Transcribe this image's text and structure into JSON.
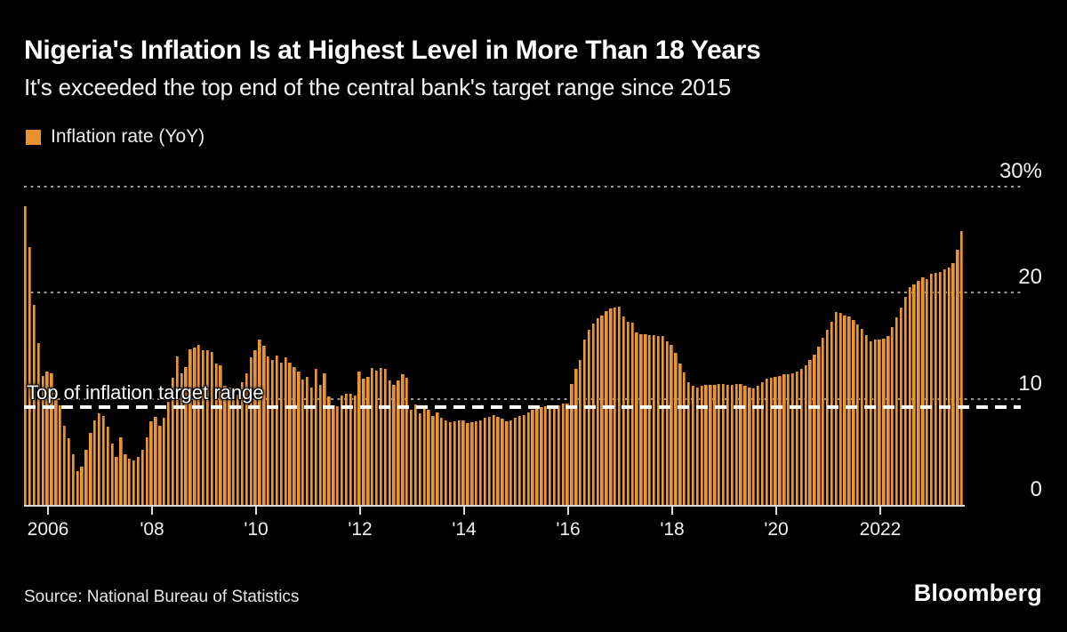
{
  "header": {
    "title": "Nigeria's Inflation Is at Highest Level in More Than 18 Years",
    "subtitle": "It's exceeded the top end of the central bank's target range since 2015"
  },
  "legend": {
    "label": "Inflation rate (YoY)",
    "swatch_color": "#E8912D"
  },
  "annotation": {
    "target_label": "Top of inflation target range",
    "target_value": 9
  },
  "footer": {
    "source": "Source: National Bureau of Statistics",
    "brand": "Bloomberg"
  },
  "colors": {
    "background": "#000000",
    "bar": "#E8912D",
    "grid_dots": "#9a9a9a",
    "axis_text": "#f0f0f0",
    "target_line": "#ffffff"
  },
  "chart_data": {
    "type": "bar",
    "title": "Nigeria's Inflation Is at Highest Level in More Than 18 Years",
    "subtitle": "It's exceeded the top end of the central bank's target range since 2015",
    "series_name": "Inflation rate (YoY)",
    "unit": "%",
    "frequency": "monthly",
    "start_month": "2005-08",
    "end_month": "2023-08",
    "ylim": [
      0,
      30
    ],
    "grid": "dotted-horizontal",
    "legend_position": "top-left",
    "y_ticks": [
      0,
      10,
      20,
      30
    ],
    "y_tick_labels": [
      "0",
      "10",
      "20",
      "30%"
    ],
    "x_ticks": [
      {
        "month_index": 5,
        "label": "2006"
      },
      {
        "month_index": 29,
        "label": "'08"
      },
      {
        "month_index": 53,
        "label": "'10"
      },
      {
        "month_index": 77,
        "label": "'12"
      },
      {
        "month_index": 101,
        "label": "'14"
      },
      {
        "month_index": 125,
        "label": "'16"
      },
      {
        "month_index": 149,
        "label": "'18"
      },
      {
        "month_index": 173,
        "label": "'20"
      },
      {
        "month_index": 197,
        "label": "2022"
      }
    ],
    "target_line": {
      "value": 9,
      "label": "Top of inflation target range"
    },
    "values": [
      28.2,
      24.3,
      18.9,
      15.3,
      12.2,
      12.6,
      12.4,
      11.0,
      9.4,
      7.5,
      6.3,
      4.8,
      3.2,
      3.6,
      5.2,
      6.8,
      8.0,
      8.6,
      8.4,
      7.4,
      5.8,
      4.5,
      6.4,
      4.8,
      4.4,
      4.2,
      4.5,
      5.2,
      6.4,
      7.9,
      8.3,
      7.5,
      8.2,
      9.7,
      12.0,
      14.0,
      12.4,
      13.0,
      14.7,
      14.8,
      15.1,
      14.6,
      14.6,
      14.4,
      13.3,
      13.2,
      11.2,
      11.1,
      11.0,
      10.4,
      11.6,
      12.4,
      13.9,
      14.6,
      15.6,
      15.0,
      14.0,
      13.7,
      14.1,
      13.4,
      13.9,
      13.4,
      13.0,
      12.6,
      11.8,
      12.1,
      11.1,
      12.8,
      11.3,
      12.4,
      10.2,
      9.4,
      9.3,
      10.3,
      10.5,
      10.5,
      10.3,
      12.6,
      11.9,
      12.1,
      12.9,
      12.7,
      12.9,
      12.8,
      11.7,
      11.3,
      11.7,
      12.3,
      12.0,
      9.0,
      9.5,
      8.6,
      9.1,
      9.0,
      8.4,
      8.7,
      8.2,
      8.0,
      7.8,
      7.9,
      8.0,
      8.0,
      7.7,
      7.8,
      7.9,
      8.0,
      8.2,
      8.3,
      8.5,
      8.3,
      8.1,
      7.9,
      8.0,
      8.2,
      8.4,
      8.5,
      8.7,
      9.0,
      9.2,
      9.2,
      9.3,
      9.4,
      9.3,
      9.4,
      9.6,
      9.6,
      11.4,
      12.8,
      13.7,
      15.6,
      16.5,
      17.1,
      17.6,
      17.9,
      18.3,
      18.5,
      18.6,
      18.7,
      17.8,
      17.3,
      17.2,
      16.3,
      16.1,
      16.1,
      16.0,
      16.0,
      15.9,
      15.9,
      15.4,
      15.1,
      14.3,
      13.3,
      12.5,
      11.6,
      11.2,
      11.1,
      11.2,
      11.3,
      11.3,
      11.3,
      11.4,
      11.4,
      11.3,
      11.3,
      11.4,
      11.4,
      11.2,
      11.1,
      11.0,
      11.2,
      11.6,
      11.9,
      12.0,
      12.1,
      12.2,
      12.3,
      12.3,
      12.4,
      12.6,
      12.8,
      13.2,
      13.7,
      14.2,
      14.9,
      15.8,
      16.5,
      17.3,
      18.2,
      18.1,
      17.9,
      17.8,
      17.4,
      17.0,
      16.6,
      16.0,
      15.4,
      15.6,
      15.6,
      15.7,
      15.9,
      16.8,
      17.7,
      18.6,
      19.6,
      20.5,
      20.8,
      21.1,
      21.5,
      21.3,
      21.8,
      21.9,
      22.0,
      22.2,
      22.4,
      22.8,
      24.1,
      25.8
    ]
  }
}
